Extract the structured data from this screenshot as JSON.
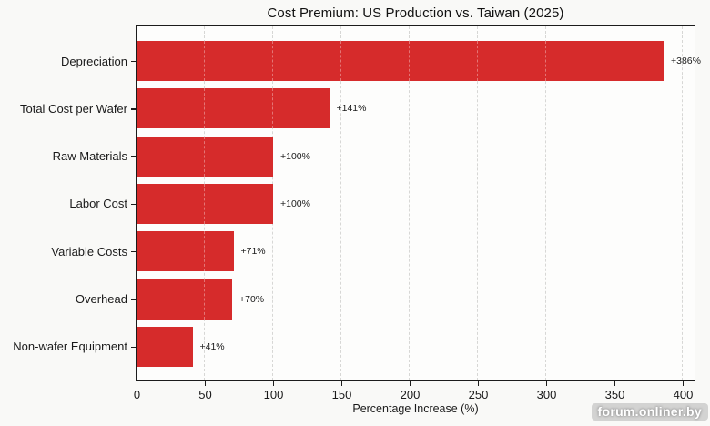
{
  "figure": {
    "background": "#f9f9f7",
    "watermark": "forum.onliner.by"
  },
  "chart_data": {
    "type": "bar",
    "orientation": "horizontal",
    "title": "Cost Premium: US Production vs. Taiwan (2025)",
    "xlabel": "Percentage Increase (%)",
    "categories": [
      "Depreciation",
      "Total Cost per Wafer",
      "Raw Materials",
      "Labor Cost",
      "Variable Costs",
      "Overhead",
      "Non-wafer Equipment"
    ],
    "values": [
      386,
      141,
      100,
      100,
      71,
      70,
      41
    ],
    "bar_labels": [
      "+386%",
      "+141%",
      "+100%",
      "+100%",
      "+71%",
      "+70%",
      "+41%"
    ],
    "xticks": [
      0,
      50,
      100,
      150,
      200,
      250,
      300,
      350,
      400
    ],
    "xlim": [
      0,
      410
    ],
    "grid": "vertical-dashed",
    "legend": "none",
    "bar_color": "#d62b2b",
    "gridline_color": "#d7d7d5",
    "text_color": "#1a1a1a"
  }
}
